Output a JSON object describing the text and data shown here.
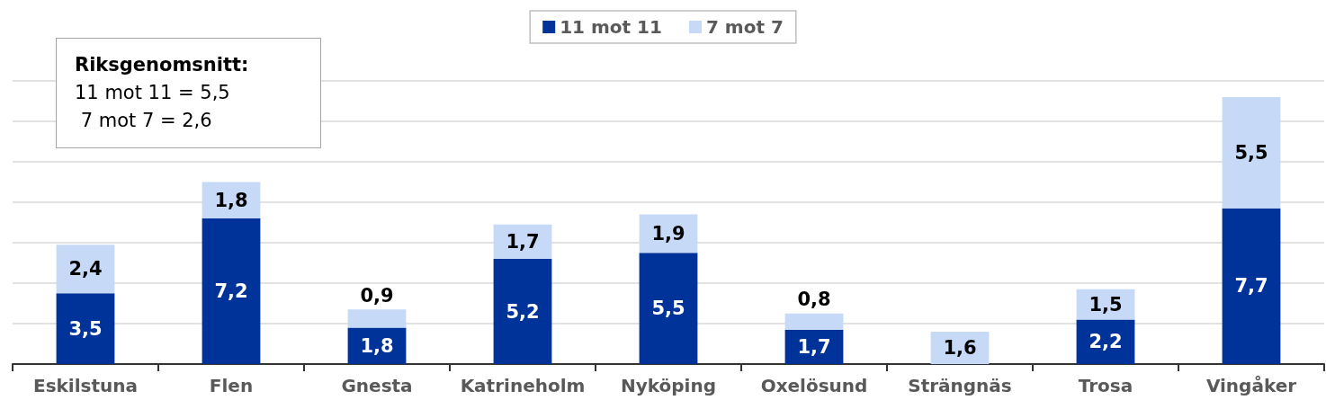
{
  "chart_data": {
    "type": "bar",
    "stacked": true,
    "categories": [
      "Eskilstuna",
      "Flen",
      "Gnesta",
      "Katrineholm",
      "Nyköping",
      "Oxelösund",
      "Strängnäs",
      "Trosa",
      "Vingåker"
    ],
    "series": [
      {
        "name": "11 mot 11",
        "color": "#003399",
        "values": [
          3.5,
          7.2,
          1.8,
          5.2,
          5.5,
          1.7,
          null,
          2.2,
          7.7
        ],
        "value_labels": [
          "3,5",
          "7,2",
          "1,8",
          "5,2",
          "5,5",
          "1,7",
          null,
          "2,2",
          "7,7"
        ]
      },
      {
        "name": "7 mot 7",
        "color": "#c6daf8",
        "values": [
          2.4,
          1.8,
          0.9,
          1.7,
          1.9,
          0.8,
          1.6,
          1.5,
          5.5
        ],
        "value_labels": [
          "2,4",
          "1,8",
          "0,9",
          "1,7",
          "1,9",
          "0,8",
          "1,6",
          "1,5",
          "5,5"
        ]
      }
    ],
    "ylim": [
      0,
      14
    ],
    "yticks": [
      {
        "value": 0,
        "label": null
      },
      {
        "value": 2,
        "label": null
      },
      {
        "value": 4,
        "label": null
      },
      {
        "value": 6,
        "label": null
      },
      {
        "value": 8,
        "label": null
      },
      {
        "value": 10,
        "label": null
      },
      {
        "value": 12,
        "label": null
      },
      {
        "value": 14,
        "label": null
      }
    ],
    "tick_labels": "x",
    "grid": "y",
    "legend": "top",
    "annotations": [
      "Riksgenomsnitt:",
      "11 mot 11 = 5,5",
      " 7 mot 7 = 2,6"
    ]
  }
}
